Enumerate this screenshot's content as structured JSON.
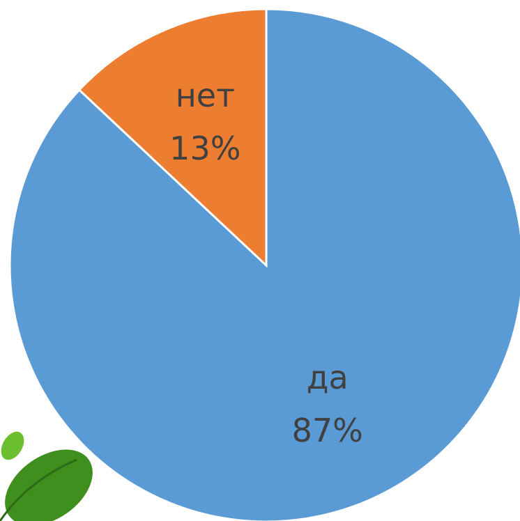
{
  "chart_data": {
    "type": "pie",
    "categories": [
      "да",
      "нет"
    ],
    "values": [
      87,
      13
    ],
    "value_labels": [
      "87%",
      "13%"
    ],
    "colors": [
      "#5b9bd5",
      "#ed7d31"
    ]
  }
}
